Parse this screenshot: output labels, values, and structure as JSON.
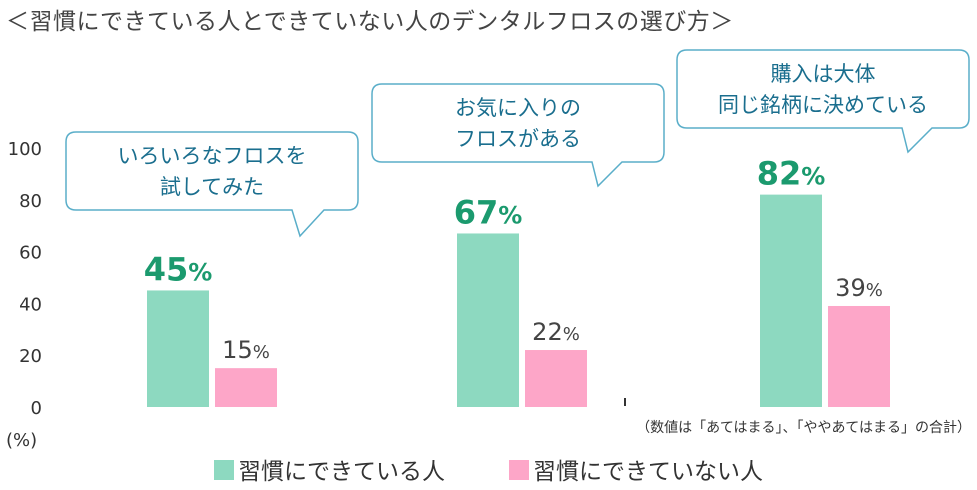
{
  "title": "＜習慣にできている人とできていない人のデンタルフロスの選び方＞",
  "colors": {
    "habit": "#8dd9c0",
    "no_habit": "#fda6c8",
    "bubble_border": "#5aaec9",
    "highlight_text": "#1b9a6e",
    "bubble_text": "#1a6e8e"
  },
  "chart_data": {
    "type": "bar",
    "categories": [
      "いろいろなフロスを試してみた",
      "お気に入りのフロスがある",
      "購入は大体同じ銘柄に決めている"
    ],
    "category_lines": [
      [
        "いろいろなフロスを",
        "試してみた"
      ],
      [
        "お気に入りの",
        "フロスがある"
      ],
      [
        "購入は大体",
        "同じ銘柄に決めている"
      ]
    ],
    "series": [
      {
        "name": "習慣にできている人",
        "values": [
          45,
          67,
          82
        ]
      },
      {
        "name": "習慣にできていない人",
        "values": [
          15,
          22,
          39
        ]
      }
    ],
    "value_labels": [
      [
        "45",
        "67",
        "82"
      ],
      [
        "15",
        "22",
        "39"
      ]
    ],
    "percent_sign": "%",
    "ylim": [
      0,
      100
    ],
    "yticks": [
      "0",
      "20",
      "40",
      "60",
      "80",
      "100"
    ],
    "ylabel": "(%)",
    "grid": false,
    "legend_position": "bottom",
    "note": "（数値は「あてはまる」、「ややあてはまる」の合計）"
  }
}
